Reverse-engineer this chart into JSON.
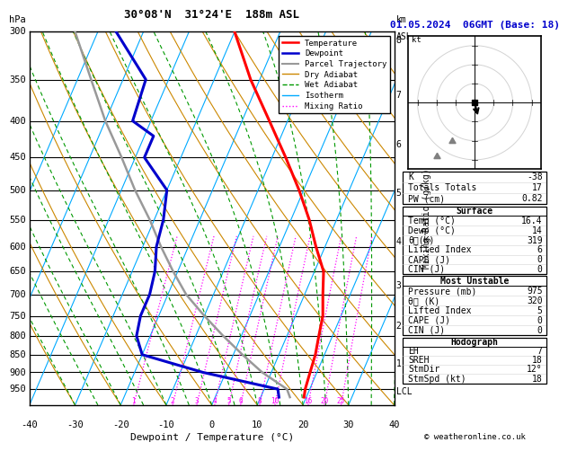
{
  "title_left": "30°08'N  31°24'E  188m ASL",
  "title_right": "01.05.2024  06GMT (Base: 18)",
  "xlabel": "Dewpoint / Temperature (°C)",
  "ylabel_left": "hPa",
  "pressure_levels": [
    300,
    350,
    400,
    450,
    500,
    550,
    600,
    650,
    700,
    750,
    800,
    850,
    900,
    950
  ],
  "xmin": -40,
  "xmax": 40,
  "pmin": 300,
  "pmax": 1000,
  "skew_factor": 35.0,
  "temp_profile_p": [
    975,
    950,
    900,
    850,
    800,
    750,
    700,
    650,
    600,
    550,
    500,
    450,
    400,
    350,
    300
  ],
  "temp_profile_T": [
    19.5,
    19,
    18.5,
    18,
    17,
    16,
    14,
    12,
    8,
    4,
    -1,
    -7,
    -14,
    -22,
    -30
  ],
  "dewp_profile_p": [
    975,
    950,
    900,
    850,
    800,
    750,
    700,
    650,
    600,
    550,
    500,
    450,
    420,
    400,
    350,
    300
  ],
  "dewp_profile_T": [
    14,
    13,
    -5,
    -20,
    -23,
    -24,
    -24,
    -25,
    -27,
    -28,
    -30,
    -38,
    -38,
    -44,
    -45,
    -56
  ],
  "parcel_profile_p": [
    975,
    950,
    900,
    850,
    800,
    750,
    700,
    650,
    600,
    550,
    500,
    450,
    400,
    350,
    300
  ],
  "parcel_profile_T": [
    16.4,
    15,
    8,
    2,
    -4,
    -10,
    -16,
    -21,
    -26,
    -31,
    -37,
    -43,
    -50,
    -57,
    -65
  ],
  "temp_color": "#ff0000",
  "dewp_color": "#0000cc",
  "parcel_color": "#999999",
  "dry_adiabat_color": "#cc8800",
  "wet_adiabat_color": "#009900",
  "isotherm_color": "#00aaff",
  "mix_ratio_color": "#ff00ff",
  "bg_color": "#ffffff",
  "grid_color": "#000000",
  "km_labels": [
    "8",
    "7",
    "6",
    "5",
    "4",
    "3",
    "2",
    "1",
    "LCL"
  ],
  "km_pressures": [
    308,
    368,
    432,
    505,
    590,
    680,
    775,
    875,
    958
  ],
  "mix_ratios": [
    1,
    2,
    3,
    4,
    5,
    6,
    8,
    10,
    16,
    20,
    25
  ],
  "copyright": "© weatheronline.co.uk"
}
